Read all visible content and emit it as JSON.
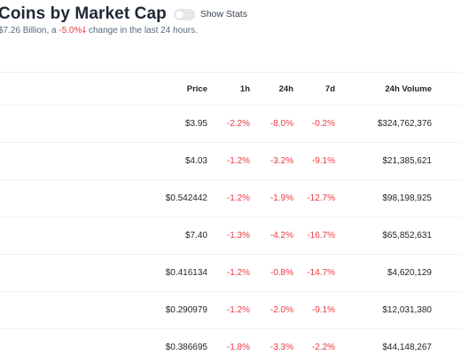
{
  "header": {
    "title": "Coins by Market Cap",
    "toggle_label": "Show Stats",
    "summary_prefix": "$7.26 Billion, a ",
    "summary_change": "-5.0%",
    "summary_suffix": " change in the last 24 hours."
  },
  "table": {
    "columns": {
      "price": "Price",
      "h1": "1h",
      "h24": "24h",
      "d7": "7d",
      "volume": "24h Volume"
    },
    "rows": [
      {
        "price": "$3.95",
        "h1": "-2.2%",
        "h24": "-8.0%",
        "d7": "-0.2%",
        "volume": "$324,762,376"
      },
      {
        "price": "$4.03",
        "h1": "-1.2%",
        "h24": "-3.2%",
        "d7": "-9.1%",
        "volume": "$21,385,621"
      },
      {
        "price": "$0.542442",
        "h1": "-1.2%",
        "h24": "-1.9%",
        "d7": "-12.7%",
        "volume": "$98,198,925"
      },
      {
        "price": "$7.40",
        "h1": "-1.3%",
        "h24": "-4.2%",
        "d7": "-16.7%",
        "volume": "$65,852,631"
      },
      {
        "price": "$0.416134",
        "h1": "-1.2%",
        "h24": "-0.8%",
        "d7": "-14.7%",
        "volume": "$4,620,129"
      },
      {
        "price": "$0.290979",
        "h1": "-1.2%",
        "h24": "-2.0%",
        "d7": "-9.1%",
        "volume": "$12,031,380"
      },
      {
        "price": "$0.386695",
        "h1": "-1.8%",
        "h24": "-3.3%",
        "d7": "-2.2%",
        "volume": "$44,148,267"
      }
    ]
  },
  "colors": {
    "negative": "#ea3943",
    "text": "#212529",
    "muted": "#58667e",
    "divider": "#eff2f5"
  },
  "icons": {
    "change_arrow": "arrow-down-icon"
  }
}
